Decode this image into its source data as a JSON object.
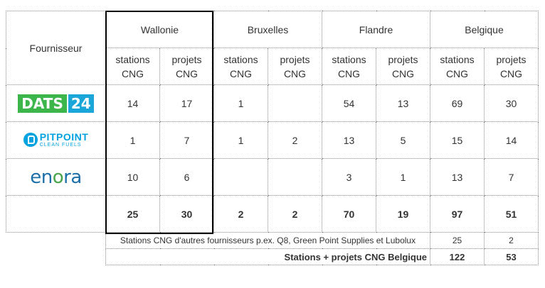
{
  "header": {
    "supplier": "Fournisseur",
    "regions": [
      "Wallonie",
      "Bruxelles",
      "Flandre",
      "Belgique"
    ],
    "subcols": [
      [
        "stations",
        "CNG"
      ],
      [
        "projets",
        "CNG"
      ]
    ]
  },
  "suppliers": [
    {
      "logo": "DATS 24",
      "logo_parts": [
        "DATS",
        "24"
      ],
      "values": [
        "14",
        "17",
        "1",
        "",
        "54",
        "13",
        "69",
        "30"
      ]
    },
    {
      "logo": "PITPOINT CLEAN FUELS",
      "logo_parts": [
        "PITPOINT",
        "CLEAN FUELS"
      ],
      "values": [
        "1",
        "7",
        "1",
        "2",
        "13",
        "5",
        "15",
        "14"
      ]
    },
    {
      "logo": "enora",
      "logo_parts": [
        "en",
        "o",
        "ra"
      ],
      "values": [
        "10",
        "6",
        "",
        "",
        "3",
        "1",
        "13",
        "7"
      ]
    }
  ],
  "totals": [
    "25",
    "30",
    "2",
    "2",
    "70",
    "19",
    "97",
    "51"
  ],
  "other": {
    "label": "Stations CNG d'autres fournisseurs p.ex. Q8, Green Point Supplies et Lubolux",
    "values": [
      "25",
      "2"
    ]
  },
  "final": {
    "label": "Stations + projets CNG Belgique",
    "values": [
      "122",
      "53"
    ]
  },
  "colors": {
    "dats_green": "#3cb54a",
    "dats_blue": "#1aa6d8",
    "pitpoint_blue": "#00a3e0",
    "enora_blue": "#1d6fa8",
    "enora_green": "#47a44b"
  }
}
